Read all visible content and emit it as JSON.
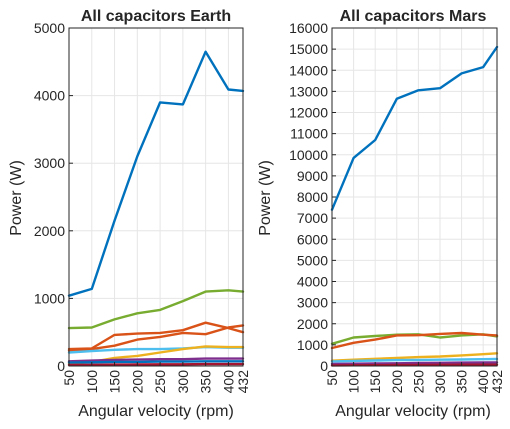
{
  "chart_data": [
    {
      "type": "line",
      "title": "All capacitors Earth",
      "xlabel": "Angular velocity (rpm)",
      "ylabel": "Power (W)",
      "x": [
        50,
        100,
        150,
        200,
        250,
        300,
        350,
        400,
        432
      ],
      "x_ticks": [
        "50",
        "100",
        "150",
        "200",
        "250",
        "300",
        "350",
        "400",
        "432"
      ],
      "xlim": [
        50,
        432
      ],
      "ylim": [
        0,
        5000
      ],
      "y_ticks": [
        "0",
        "1000",
        "2000",
        "3000",
        "4000",
        "5000"
      ],
      "grid": true,
      "series": [
        {
          "color": "#0072BD",
          "values": [
            1040,
            1140,
            2150,
            3100,
            3900,
            3870,
            4650,
            4090,
            4070
          ]
        },
        {
          "color": "#77AC30",
          "values": [
            560,
            570,
            690,
            780,
            830,
            960,
            1100,
            1120,
            1100
          ]
        },
        {
          "color": "#D95319",
          "values": [
            250,
            260,
            460,
            480,
            490,
            530,
            640,
            560,
            500
          ]
        },
        {
          "color": "#D95319",
          "values": [
            230,
            250,
            300,
            390,
            430,
            490,
            470,
            570,
            600
          ]
        },
        {
          "color": "#4DBEEE",
          "values": [
            200,
            220,
            240,
            250,
            250,
            260,
            280,
            270,
            270
          ]
        },
        {
          "color": "#EDB120",
          "values": [
            30,
            60,
            120,
            150,
            200,
            250,
            290,
            280,
            280
          ]
        },
        {
          "color": "#7E2F8E",
          "values": [
            70,
            80,
            90,
            95,
            100,
            100,
            110,
            110,
            110
          ]
        },
        {
          "color": "#0072BD",
          "values": [
            50,
            55,
            60,
            60,
            65,
            65,
            70,
            70,
            70
          ]
        },
        {
          "color": "#A2142F",
          "values": [
            15,
            18,
            20,
            22,
            25,
            25,
            28,
            28,
            28
          ]
        }
      ]
    },
    {
      "type": "line",
      "title": "All capacitors Mars",
      "xlabel": "Angular velocity (rpm)",
      "ylabel": "Power (W)",
      "x": [
        50,
        100,
        150,
        200,
        250,
        300,
        350,
        400,
        432
      ],
      "x_ticks": [
        "50",
        "100",
        "150",
        "200",
        "250",
        "300",
        "350",
        "400",
        "432"
      ],
      "xlim": [
        50,
        432
      ],
      "ylim": [
        0,
        16000
      ],
      "y_ticks": [
        "0",
        "1000",
        "2000",
        "3000",
        "4000",
        "5000",
        "6000",
        "7000",
        "8000",
        "9000",
        "10000",
        "11000",
        "12000",
        "13000",
        "14000",
        "15000",
        "16000"
      ],
      "grid": true,
      "series": [
        {
          "color": "#0072BD",
          "values": [
            7400,
            9850,
            10700,
            12650,
            13050,
            13150,
            13850,
            14150,
            15100
          ]
        },
        {
          "color": "#77AC30",
          "values": [
            1050,
            1350,
            1420,
            1480,
            1500,
            1350,
            1450,
            1500,
            1400
          ]
        },
        {
          "color": "#D95319",
          "values": [
            850,
            1100,
            1250,
            1450,
            1460,
            1520,
            1560,
            1480,
            1450
          ]
        },
        {
          "color": "#EDB120",
          "values": [
            250,
            300,
            340,
            380,
            420,
            450,
            500,
            560,
            600
          ]
        },
        {
          "color": "#4DBEEE",
          "values": [
            220,
            240,
            260,
            280,
            290,
            300,
            310,
            320,
            330
          ]
        },
        {
          "color": "#7E2F8E",
          "values": [
            100,
            110,
            120,
            130,
            140,
            150,
            160,
            165,
            170
          ]
        },
        {
          "color": "#A2142F",
          "values": [
            30,
            35,
            40,
            45,
            50,
            55,
            60,
            60,
            60
          ]
        }
      ]
    }
  ]
}
